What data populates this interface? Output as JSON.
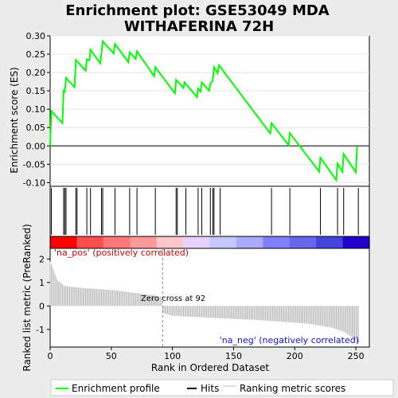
{
  "chart_data": {
    "type": "line",
    "title_lines": [
      "Enrichment plot: GSE53049 MDA",
      "WITHAFERINA 72H"
    ],
    "es_panel": {
      "ylabel": "Enrichment score (ES)",
      "ylim": [
        -0.11,
        0.3
      ],
      "yticks": [
        -0.1,
        -0.05,
        0.0,
        0.05,
        0.1,
        0.15,
        0.2,
        0.25,
        0.3
      ],
      "ytick_labels": [
        "-0.10",
        "-0.05",
        "0.00",
        "0.05",
        "0.10",
        "0.15",
        "0.20",
        "0.25",
        "0.30"
      ],
      "series_color": "#00ff00",
      "es_curve": {
        "x": [
          0,
          1,
          10,
          11,
          12,
          13,
          20,
          21,
          29,
          30,
          32,
          33,
          41,
          42,
          43,
          52,
          53,
          64,
          65,
          70,
          71,
          85,
          86,
          102,
          103,
          109,
          110,
          120,
          121,
          123,
          124,
          130,
          131,
          133,
          134,
          137,
          138,
          180,
          181,
          195,
          196,
          220,
          221,
          234,
          235,
          239,
          240,
          250,
          251
        ],
        "y": [
          0.0,
          0.095,
          0.062,
          0.15,
          0.148,
          0.185,
          0.16,
          0.234,
          0.205,
          0.236,
          0.233,
          0.262,
          0.225,
          0.254,
          0.285,
          0.252,
          0.278,
          0.228,
          0.255,
          0.237,
          0.258,
          0.19,
          0.215,
          0.143,
          0.18,
          0.158,
          0.173,
          0.133,
          0.156,
          0.148,
          0.173,
          0.15,
          0.17,
          0.178,
          0.215,
          0.198,
          0.22,
          0.034,
          0.062,
          0.002,
          0.035,
          -0.07,
          -0.032,
          -0.093,
          -0.048,
          -0.07,
          -0.022,
          -0.072,
          0.0
        ]
      }
    },
    "hits": [
      1,
      11,
      12,
      13,
      21,
      22,
      30,
      33,
      42,
      43,
      53,
      65,
      71,
      86,
      103,
      104,
      111,
      121,
      124,
      131,
      133,
      134,
      139,
      181,
      196,
      221,
      235,
      240,
      252
    ],
    "gradient_colors": [
      "#ff0000",
      "#ff4d4d",
      "#ff7777",
      "#ff9999",
      "#ffc8c8",
      "#e8d2ff",
      "#c6c6ff",
      "#aaaaff",
      "#8080ff",
      "#6666ee",
      "#4444dd",
      "#2200cc"
    ],
    "rank_panel": {
      "ylabel": "Ranked list metric (PreRanked)",
      "xlabel": "Rank in Ordered Dataset",
      "xlim": [
        0,
        261
      ],
      "xticks": [
        0,
        50,
        100,
        150,
        200,
        250
      ],
      "ylim": [
        -1.75,
        2.45
      ],
      "yticks": [
        -1,
        0,
        1,
        2
      ],
      "ytick_labels": [
        "-1",
        "0",
        "1",
        "2"
      ],
      "n_genes": 253,
      "zero_cross": 92,
      "profile_keypoints": {
        "rank": [
          0,
          2,
          4,
          6,
          8,
          12,
          20,
          30,
          50,
          70,
          85,
          91,
          92,
          100,
          130,
          170,
          210,
          230,
          240,
          246,
          252
        ],
        "value": [
          1.9,
          1.65,
          1.35,
          1.1,
          1.0,
          0.85,
          0.8,
          0.75,
          0.68,
          0.55,
          0.45,
          0.38,
          -0.3,
          -0.42,
          -0.5,
          -0.6,
          -0.75,
          -0.92,
          -1.1,
          -1.3,
          -1.6
        ]
      },
      "annotation_pos": "'na_pos' (positively correlated)",
      "annotation_neg": "'na_neg' (negatively correlated)",
      "annotation_zero": "Zero cross at 92"
    },
    "legend": {
      "entries": [
        {
          "label": "Enrichment profile",
          "color": "#00ff00"
        },
        {
          "label": "Hits",
          "color": "#000000"
        },
        {
          "label": "Ranking metric scores",
          "color": "#bbbbbb"
        }
      ]
    }
  }
}
